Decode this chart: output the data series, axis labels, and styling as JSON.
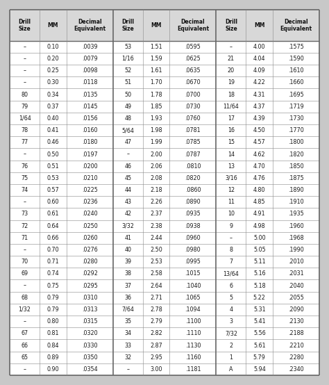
{
  "col1": [
    [
      "–",
      "0.10",
      ".0039"
    ],
    [
      "–",
      "0.20",
      ".0079"
    ],
    [
      "–",
      "0.25",
      ".0098"
    ],
    [
      "–",
      "0.30",
      ".0118"
    ],
    [
      "80",
      "0.34",
      ".0135"
    ],
    [
      "79",
      "0.37",
      ".0145"
    ],
    [
      "1/64",
      "0.40",
      ".0156"
    ],
    [
      "78",
      "0.41",
      ".0160"
    ],
    [
      "77",
      "0.46",
      ".0180"
    ],
    [
      "–",
      "0.50",
      ".0197"
    ],
    [
      "76",
      "0.51",
      ".0200"
    ],
    [
      "75",
      "0.53",
      ".0210"
    ],
    [
      "74",
      "0.57",
      ".0225"
    ],
    [
      "–",
      "0.60",
      ".0236"
    ],
    [
      "73",
      "0.61",
      ".0240"
    ],
    [
      "72",
      "0.64",
      ".0250"
    ],
    [
      "71",
      "0.66",
      ".0260"
    ],
    [
      "–",
      "0.70",
      ".0276"
    ],
    [
      "70",
      "0.71",
      ".0280"
    ],
    [
      "69",
      "0.74",
      ".0292"
    ],
    [
      "–",
      "0.75",
      ".0295"
    ],
    [
      "68",
      "0.79",
      ".0310"
    ],
    [
      "1/32",
      "0.79",
      ".0313"
    ],
    [
      "–",
      "0.80",
      ".0315"
    ],
    [
      "67",
      "0.81",
      ".0320"
    ],
    [
      "66",
      "0.84",
      ".0330"
    ],
    [
      "65",
      "0.89",
      ".0350"
    ],
    [
      "–",
      "0.90",
      ".0354"
    ]
  ],
  "col2": [
    [
      "53",
      "1.51",
      ".0595"
    ],
    [
      "1/16",
      "1.59",
      ".0625"
    ],
    [
      "52",
      "1.61",
      ".0635"
    ],
    [
      "51",
      "1.70",
      ".0670"
    ],
    [
      "50",
      "1.78",
      ".0700"
    ],
    [
      "49",
      "1.85",
      ".0730"
    ],
    [
      "48",
      "1.93",
      ".0760"
    ],
    [
      "5/64",
      "1.98",
      ".0781"
    ],
    [
      "47",
      "1.99",
      ".0785"
    ],
    [
      "–",
      "2.00",
      ".0787"
    ],
    [
      "46",
      "2.06",
      ".0810"
    ],
    [
      "45",
      "2.08",
      ".0820"
    ],
    [
      "44",
      "2.18",
      ".0860"
    ],
    [
      "43",
      "2.26",
      ".0890"
    ],
    [
      "42",
      "2.37",
      ".0935"
    ],
    [
      "3/32",
      "2.38",
      ".0938"
    ],
    [
      "41",
      "2.44",
      ".0960"
    ],
    [
      "40",
      "2.50",
      ".0980"
    ],
    [
      "39",
      "2.53",
      ".0995"
    ],
    [
      "38",
      "2.58",
      ".1015"
    ],
    [
      "37",
      "2.64",
      ".1040"
    ],
    [
      "36",
      "2.71",
      ".1065"
    ],
    [
      "7/64",
      "2.78",
      ".1094"
    ],
    [
      "35",
      "2.79",
      ".1100"
    ],
    [
      "34",
      "2.82",
      ".1110"
    ],
    [
      "33",
      "2.87",
      ".1130"
    ],
    [
      "32",
      "2.95",
      ".1160"
    ],
    [
      "–",
      "3.00",
      ".1181"
    ]
  ],
  "col3": [
    [
      "–",
      "4.00",
      ".1575"
    ],
    [
      "21",
      "4.04",
      ".1590"
    ],
    [
      "20",
      "4.09",
      ".1610"
    ],
    [
      "19",
      "4.22",
      ".1660"
    ],
    [
      "18",
      "4.31",
      ".1695"
    ],
    [
      "11/64",
      "4.37",
      ".1719"
    ],
    [
      "17",
      "4.39",
      ".1730"
    ],
    [
      "16",
      "4.50",
      ".1770"
    ],
    [
      "15",
      "4.57",
      ".1800"
    ],
    [
      "14",
      "4.62",
      ".1820"
    ],
    [
      "13",
      "4.70",
      ".1850"
    ],
    [
      "3/16",
      "4.76",
      ".1875"
    ],
    [
      "12",
      "4.80",
      ".1890"
    ],
    [
      "11",
      "4.85",
      ".1910"
    ],
    [
      "10",
      "4.91",
      ".1935"
    ],
    [
      "9",
      "4.98",
      ".1960"
    ],
    [
      "–",
      "5.00",
      ".1968"
    ],
    [
      "8",
      "5.05",
      ".1990"
    ],
    [
      "7",
      "5.11",
      ".2010"
    ],
    [
      "13/64",
      "5.16",
      ".2031"
    ],
    [
      "6",
      "5.18",
      ".2040"
    ],
    [
      "5",
      "5.22",
      ".2055"
    ],
    [
      "4",
      "5.31",
      ".2090"
    ],
    [
      "3",
      "5.41",
      ".2130"
    ],
    [
      "7/32",
      "5.56",
      ".2188"
    ],
    [
      "2",
      "5.61",
      ".2210"
    ],
    [
      "1",
      "5.79",
      ".2280"
    ],
    [
      "A",
      "5.94",
      ".2340"
    ]
  ],
  "header_bg": "#d8d8d8",
  "data_bg": "#ffffff",
  "outer_bg": "#c8c8c8",
  "border_color": "#888888",
  "thick_border_color": "#666666",
  "text_color": "#1a1a1a",
  "header_text_color": "#111111",
  "header_font_size": 5.5,
  "data_font_size": 5.8,
  "figw": 4.74,
  "figh": 5.54,
  "dpi": 100
}
